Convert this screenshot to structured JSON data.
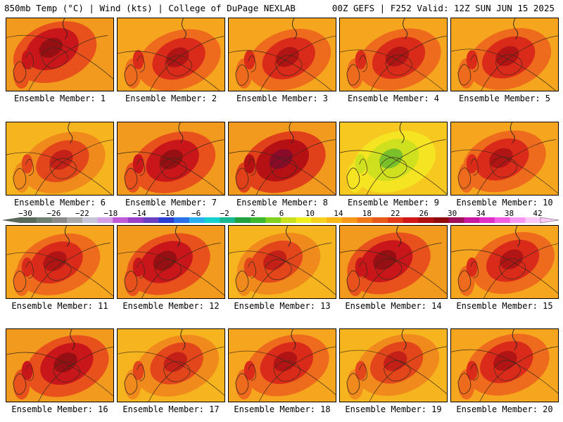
{
  "header": {
    "title": "850mb Temp (°C) | Wind (kts) | College of DuPage NEXLAB",
    "run_info": "00Z GEFS | F252 Valid: 12Z SUN JUN 15 2025"
  },
  "colorbar": {
    "labels": [
      "−30",
      "−26",
      "−22",
      "−18",
      "−14",
      "−10",
      "−6",
      "−2",
      "2",
      "6",
      "10",
      "14",
      "18",
      "22",
      "26",
      "30",
      "34",
      "38",
      "42"
    ],
    "colors": [
      "#5a6a5a",
      "#6f7f6f",
      "#8a8a8a",
      "#a9a9a9",
      "#c6c6d8",
      "#d4a0e6",
      "#c05ad8",
      "#9a3fc8",
      "#6a3fc0",
      "#2a3fd0",
      "#2a70e8",
      "#2ab0f0",
      "#18d0d0",
      "#18b890",
      "#20a040",
      "#3cb830",
      "#80d020",
      "#c8e020",
      "#f0f020",
      "#f8d020",
      "#f8b818",
      "#f89818",
      "#f07818",
      "#e85818",
      "#e03818",
      "#d01818",
      "#b01010",
      "#900c0c",
      "#a0105a",
      "#c818a0",
      "#e030c8",
      "#f060e0",
      "#f898f0",
      "#fcc8f8"
    ]
  },
  "panels": [
    {
      "label": "Ensemble Member: 1",
      "palette": "hot"
    },
    {
      "label": "Ensemble Member: 2",
      "palette": "warm"
    },
    {
      "label": "Ensemble Member: 3",
      "palette": "warm"
    },
    {
      "label": "Ensemble Member: 4",
      "palette": "warm"
    },
    {
      "label": "Ensemble Member: 5",
      "palette": "warm"
    },
    {
      "label": "Ensemble Member: 6",
      "palette": "mild"
    },
    {
      "label": "Ensemble Member: 7",
      "palette": "hot"
    },
    {
      "label": "Ensemble Member: 8",
      "palette": "extreme"
    },
    {
      "label": "Ensemble Member: 9",
      "palette": "cool"
    },
    {
      "label": "Ensemble Member: 10",
      "palette": "warm"
    },
    {
      "label": "Ensemble Member: 11",
      "palette": "warm"
    },
    {
      "label": "Ensemble Member: 12",
      "palette": "hot"
    },
    {
      "label": "Ensemble Member: 13",
      "palette": "mild"
    },
    {
      "label": "Ensemble Member: 14",
      "palette": "hot"
    },
    {
      "label": "Ensemble Member: 15",
      "palette": "warm"
    },
    {
      "label": "Ensemble Member: 16",
      "palette": "hot"
    },
    {
      "label": "Ensemble Member: 17",
      "palette": "mild"
    },
    {
      "label": "Ensemble Member: 18",
      "palette": "warm"
    },
    {
      "label": "Ensemble Member: 19",
      "palette": "mild"
    },
    {
      "label": "Ensemble Member: 20",
      "palette": "warm"
    }
  ],
  "palettes": {
    "hot": {
      "bg": "#f29a1e",
      "mid": "#e8501c",
      "core": "#c8161a",
      "deep": "#960f12"
    },
    "warm": {
      "bg": "#f5a61e",
      "mid": "#ee6a1c",
      "core": "#d92a1a",
      "deep": "#b01414"
    },
    "mild": {
      "bg": "#f6b41e",
      "mid": "#f08a1c",
      "core": "#e2461a",
      "deep": "#c42018"
    },
    "extreme": {
      "bg": "#f29a1e",
      "mid": "#e0401a",
      "core": "#b51013",
      "deep": "#8a0a2a"
    },
    "cool": {
      "bg": "#f7c820",
      "mid": "#f4e421",
      "core": "#cfe01f",
      "deep": "#7ac02a"
    }
  }
}
